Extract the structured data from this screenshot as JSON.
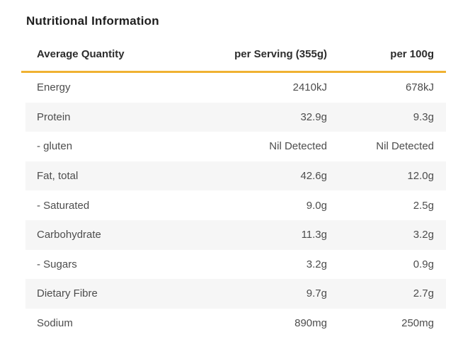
{
  "title": "Nutritional Information",
  "table": {
    "columns": [
      "Average Quantity",
      "per Serving (355g)",
      "per 100g"
    ],
    "rows": [
      {
        "name": "Energy",
        "per_serving": "2410kJ",
        "per_100g": "678kJ"
      },
      {
        "name": "Protein",
        "per_serving": "32.9g",
        "per_100g": "9.3g"
      },
      {
        "name": "- gluten",
        "per_serving": "Nil Detected",
        "per_100g": "Nil Detected"
      },
      {
        "name": "Fat, total",
        "per_serving": "42.6g",
        "per_100g": "12.0g"
      },
      {
        "name": "- Saturated",
        "per_serving": "9.0g",
        "per_100g": "2.5g"
      },
      {
        "name": "Carbohydrate",
        "per_serving": "11.3g",
        "per_100g": "3.2g"
      },
      {
        "name": "- Sugars",
        "per_serving": "3.2g",
        "per_100g": "0.9g"
      },
      {
        "name": "Dietary Fibre",
        "per_serving": "9.7g",
        "per_100g": "2.7g"
      },
      {
        "name": "Sodium",
        "per_serving": "890mg",
        "per_100g": "250mg"
      }
    ]
  },
  "colors": {
    "accent": "#F0B232",
    "row_alt_bg": "#F6F6F6",
    "title_text": "#1E1E1E",
    "header_text": "#2D2D2D",
    "body_text": "#4D4D4D"
  }
}
